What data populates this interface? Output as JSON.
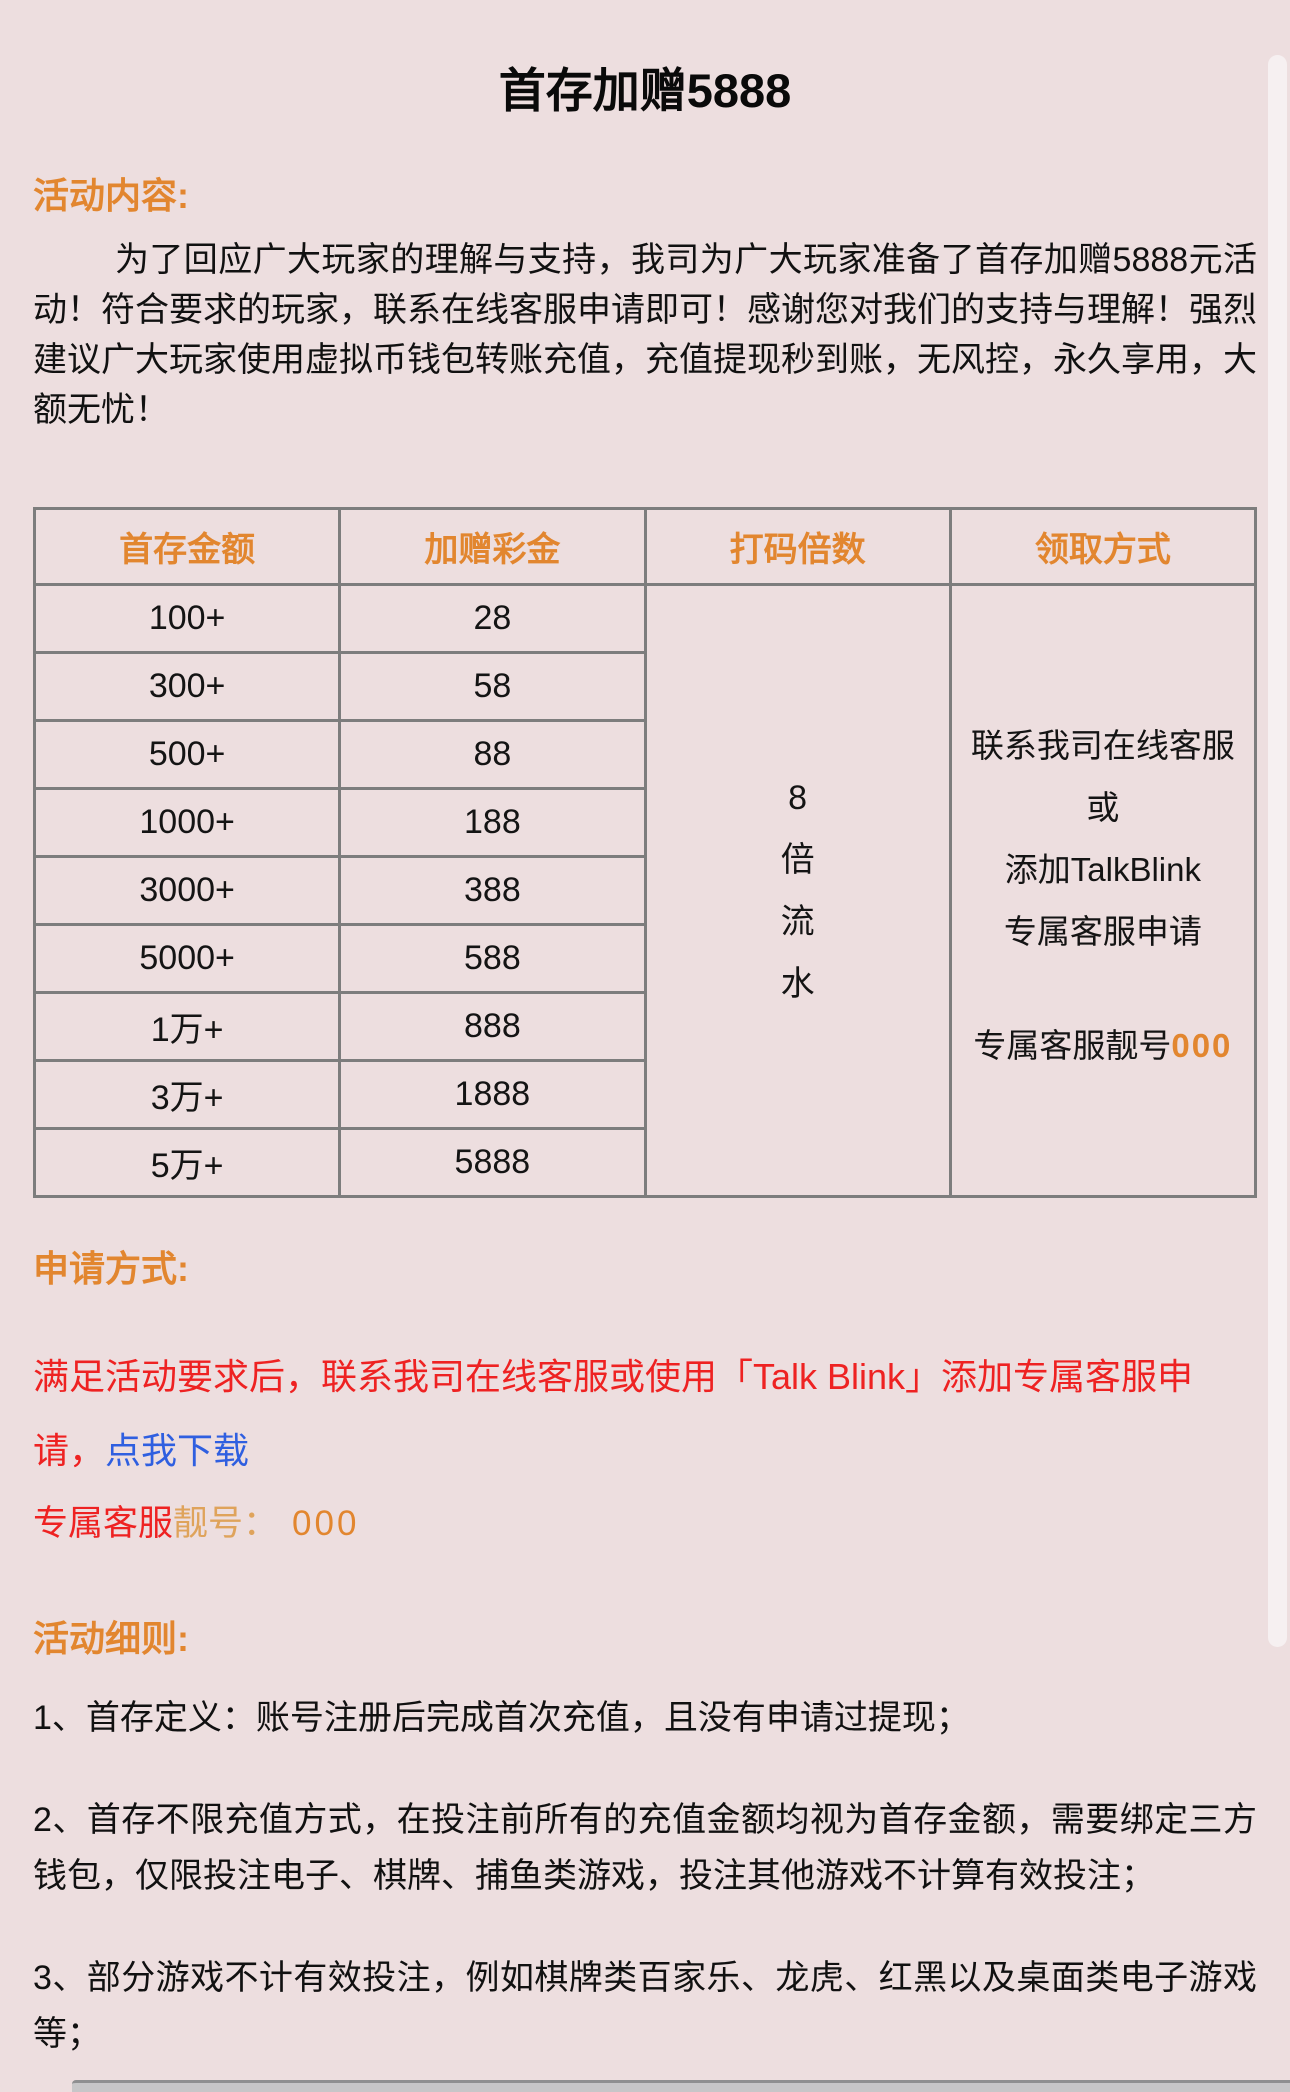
{
  "title": "首存加赠5888",
  "colors": {
    "background": "#EDDEDF",
    "accent_orange": "#E2862F",
    "red": "#EE2222",
    "link_blue": "#2F5FE0",
    "table_border": "#7D7D7D"
  },
  "sections": {
    "activity": {
      "heading": "活动内容:",
      "body": "为了回应广大玩家的理解与支持，我司为广大玩家准备了首存加赠5888元活动！符合要求的玩家，联系在线客服申请即可！感谢您对我们的支持与理解！强烈建议广大玩家使用虚拟币钱包转账充值，充值提现秒到账，无风控，永久享用，大额无忧！"
    },
    "apply": {
      "heading": "申请方式:",
      "body_red": "满足活动要求后，联系我司在线客服或使用「Talk Blink」添加专属客服申请，",
      "link_text": "点我下载",
      "vip_label_red": "专属客服",
      "vip_label_orange": "靓号：",
      "vip_number": "000"
    },
    "rules": {
      "heading": "活动细则:",
      "items": [
        "1、首存定义：账号注册后完成首次充值，且没有申请过提现；",
        "2、首存不限充值方式，在投注前所有的充值金额均视为首存金额，需要绑定三方钱包，仅限投注电子、棋牌、捕鱼类游戏，投注其他游戏不计算有效投注；",
        "3、部分游戏不计有效投注，例如棋牌类百家乐、龙虎、红黑以及桌面类电子游戏等；"
      ]
    }
  },
  "table": {
    "headers": [
      "首存金额",
      "加赠彩金",
      "打码倍数",
      "领取方式"
    ],
    "rows": [
      {
        "deposit": "100+",
        "bonus": "28"
      },
      {
        "deposit": "300+",
        "bonus": "58"
      },
      {
        "deposit": "500+",
        "bonus": "88"
      },
      {
        "deposit": "1000+",
        "bonus": "188"
      },
      {
        "deposit": "3000+",
        "bonus": "388"
      },
      {
        "deposit": "5000+",
        "bonus": "588"
      },
      {
        "deposit": "1万+",
        "bonus": "888"
      },
      {
        "deposit": "3万+",
        "bonus": "1888"
      },
      {
        "deposit": "5万+",
        "bonus": "5888"
      }
    ],
    "wagering": "8\n倍\n流\n水",
    "claim": {
      "text": "联系我司在线客服或\n添加TalkBlink\n专属客服申请",
      "vip_label": "专属客服靓号",
      "vip_number": "000"
    }
  }
}
